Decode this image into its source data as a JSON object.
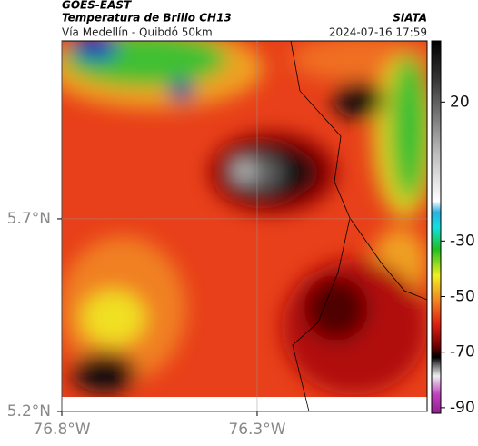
{
  "header": {
    "source": "GOES-EAST",
    "title": "Temperatura de Brillo CH13",
    "org": "SIATA",
    "subtitle": "Vía Medellín - Quibdó 50km",
    "datetime": "2024-07-16 17:59"
  },
  "map": {
    "xlim": [
      -76.8,
      -75.865
    ],
    "ylim": [
      5.2,
      6.162
    ],
    "xticks": [
      {
        "value": -76.8,
        "label": "76.8°W"
      },
      {
        "value": -76.3,
        "label": "76.3°W"
      }
    ],
    "yticks": [
      {
        "value": 5.7,
        "label": "5.7°N"
      },
      {
        "value": 5.2,
        "label": "5.2°N"
      }
    ]
  },
  "colorbar": {
    "lim": [
      -92,
      42
    ],
    "ticks": [
      20,
      -30,
      -50,
      -70,
      -90
    ]
  }
}
